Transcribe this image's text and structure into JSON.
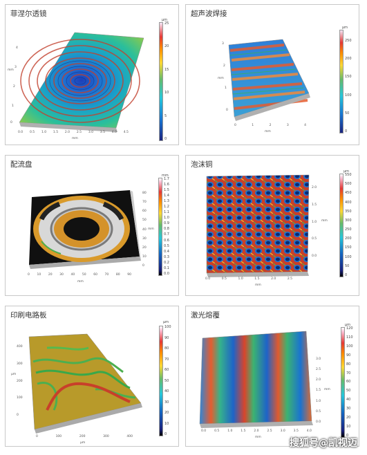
{
  "panels": [
    {
      "title": "菲涅尔透镜",
      "unit": "µm",
      "scale": [
        "25",
        "20",
        "15",
        "10",
        "5",
        "0"
      ],
      "yticks": [
        "4",
        "3",
        "2",
        "1",
        "0"
      ],
      "xticks": [
        "0.0",
        "0.5",
        "1.0",
        "1.5",
        "2.0",
        "2.5",
        "3.0",
        "3.5",
        "4.0",
        "4.5"
      ],
      "xlabel": "mm",
      "ylabel": "mm"
    },
    {
      "title": "超声波焊接",
      "unit": "µm",
      "scale": [
        "250",
        "200",
        "150",
        "100",
        "50",
        "0"
      ],
      "yticks": [
        "3",
        "2",
        "1",
        "0"
      ],
      "xticks": [
        "0",
        "1",
        "2",
        "3",
        "4"
      ],
      "xlabel": "mm",
      "ylabel": "mm"
    },
    {
      "title": "配流盘",
      "unit": "mm",
      "scale": [
        "1.7",
        "1.6",
        "1.5",
        "1.4",
        "1.3",
        "1.2",
        "1.1",
        "1.0",
        "0.9",
        "0.8",
        "0.7",
        "0.6",
        "0.5",
        "0.4",
        "0.3",
        "0.2",
        "0.1",
        "0.0"
      ],
      "yticks": [
        "80",
        "70",
        "60",
        "50",
        "40",
        "30",
        "20",
        "10",
        "0"
      ],
      "xticks": [
        "0",
        "10",
        "20",
        "30",
        "40",
        "50",
        "60",
        "70",
        "80",
        "90"
      ],
      "xlabel": "mm",
      "ylabel": "mm"
    },
    {
      "title": "泡沫铜",
      "unit": "µm",
      "scale": [
        "550",
        "500",
        "450",
        "400",
        "350",
        "300",
        "250",
        "200",
        "150",
        "100",
        "50",
        "0"
      ],
      "yticks": [
        "2.0",
        "1.5",
        "1.0",
        "0.5",
        "0.0"
      ],
      "xticks": [
        "0.0",
        "0.5",
        "1.0",
        "1.5",
        "2.0",
        "2.5"
      ],
      "xlabel": "mm",
      "ylabel": "mm"
    },
    {
      "title": "印刷电路板",
      "unit": "µm",
      "scale": [
        "100",
        "90",
        "80",
        "70",
        "60",
        "50",
        "40",
        "30",
        "20",
        "10",
        "0"
      ],
      "yticks": [
        "400",
        "300",
        "200",
        "100",
        "0"
      ],
      "xticks": [
        "0",
        "100",
        "200",
        "300",
        "400"
      ],
      "xlabel": "µm",
      "ylabel": "µm"
    },
    {
      "title": "激光熔覆",
      "unit": "µm",
      "scale": [
        "120",
        "110",
        "100",
        "90",
        "80",
        "70",
        "60",
        "50",
        "40",
        "30",
        "20",
        "10",
        "0"
      ],
      "yticks": [
        "3.0",
        "2.5",
        "2.0",
        "1.5",
        "1.0",
        "0.5",
        "0.0"
      ],
      "xticks": [
        "0.0",
        "0.5",
        "1.0",
        "1.5",
        "2.0",
        "2.5",
        "3.0",
        "3.5",
        "4.0"
      ],
      "xlabel": "mm",
      "ylabel": "mm"
    }
  ],
  "watermark": "搜狐号@凯视迈"
}
